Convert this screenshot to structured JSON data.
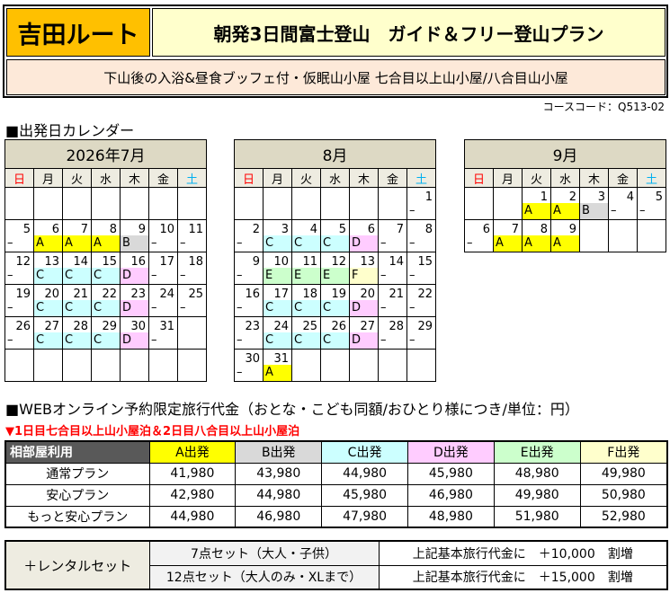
{
  "header": {
    "route": "吉田ルート",
    "title": "朝発3日間富士登山　ガイド＆フリー登山プラン",
    "subtitle": "下山後の入浴&昼食ブッフェ付・仮眠山小屋 七合目以上山小屋/八合目山小屋",
    "course_code": "コースコード：Q513-02"
  },
  "calendar": {
    "heading": "■出発日カレンダー",
    "weekdays": [
      "日",
      "月",
      "火",
      "水",
      "木",
      "金",
      "土"
    ],
    "weekday_colors": [
      "#FF0000",
      "#000000",
      "#000000",
      "#000000",
      "#000000",
      "#000000",
      "#00B0F0"
    ],
    "mark_colors": {
      "A": "#FFFF00",
      "B": "#D9D9D9",
      "C": "#CCFFFF",
      "D": "#FFCCFF",
      "E": "#CCFFCC",
      "F": "#FFFFCC"
    },
    "months": [
      {
        "title": "2026年7月",
        "weeks": [
          [
            null,
            null,
            null,
            null,
            null,
            null,
            null
          ],
          [
            [
              "5",
              "–"
            ],
            [
              "6",
              "A"
            ],
            [
              "7",
              "A"
            ],
            [
              "8",
              "A"
            ],
            [
              "9",
              "B"
            ],
            [
              "10",
              "–"
            ],
            [
              "11",
              "–"
            ]
          ],
          [
            [
              "12",
              "–"
            ],
            [
              "13",
              "C"
            ],
            [
              "14",
              "C"
            ],
            [
              "15",
              "C"
            ],
            [
              "16",
              "D"
            ],
            [
              "17",
              "–"
            ],
            [
              "18",
              "–"
            ]
          ],
          [
            [
              "19",
              "–"
            ],
            [
              "20",
              "C"
            ],
            [
              "21",
              "C"
            ],
            [
              "22",
              "C"
            ],
            [
              "23",
              "D"
            ],
            [
              "24",
              "–"
            ],
            [
              "25",
              "–"
            ]
          ],
          [
            [
              "26",
              "–"
            ],
            [
              "27",
              "C"
            ],
            [
              "28",
              "C"
            ],
            [
              "29",
              "C"
            ],
            [
              "30",
              "D"
            ],
            [
              "31",
              "–"
            ],
            null
          ],
          [
            null,
            null,
            null,
            null,
            null,
            null,
            null
          ]
        ]
      },
      {
        "title": "8月",
        "weeks": [
          [
            null,
            null,
            null,
            null,
            null,
            null,
            [
              "1",
              "–"
            ]
          ],
          [
            [
              "2",
              "–"
            ],
            [
              "3",
              "C"
            ],
            [
              "4",
              "C"
            ],
            [
              "5",
              "C"
            ],
            [
              "6",
              "D"
            ],
            [
              "7",
              "–"
            ],
            [
              "8",
              "–"
            ]
          ],
          [
            [
              "9",
              "–"
            ],
            [
              "10",
              "E"
            ],
            [
              "11",
              "E"
            ],
            [
              "12",
              "E"
            ],
            [
              "13",
              "F"
            ],
            [
              "14",
              "–"
            ],
            [
              "15",
              "–"
            ]
          ],
          [
            [
              "16",
              "–"
            ],
            [
              "17",
              "C"
            ],
            [
              "18",
              "C"
            ],
            [
              "19",
              "C"
            ],
            [
              "20",
              "D"
            ],
            [
              "21",
              "–"
            ],
            [
              "22",
              "–"
            ]
          ],
          [
            [
              "23",
              "–"
            ],
            [
              "24",
              "C"
            ],
            [
              "25",
              "C"
            ],
            [
              "26",
              "C"
            ],
            [
              "27",
              "D"
            ],
            [
              "28",
              "–"
            ],
            [
              "29",
              "–"
            ]
          ],
          [
            [
              "30",
              "–"
            ],
            [
              "31",
              "A"
            ],
            null,
            null,
            null,
            null,
            null
          ]
        ]
      },
      {
        "title": "9月",
        "weeks": [
          [
            null,
            null,
            [
              "1",
              "A"
            ],
            [
              "2",
              "A"
            ],
            [
              "3",
              "B"
            ],
            [
              "4",
              "–"
            ],
            [
              "5",
              "–"
            ]
          ],
          [
            [
              "6",
              "–"
            ],
            [
              "7",
              "A"
            ],
            [
              "8",
              "A"
            ],
            [
              "9",
              "A"
            ],
            null,
            null,
            null
          ]
        ]
      }
    ]
  },
  "prices": {
    "heading": "■WEBオンライン予約限定旅行代金（おとな・こども同額/おひとり様につき/単位：円）",
    "note": "▼1日目七合目以上山小屋泊＆2日目八合目以上山小屋泊",
    "corner": "相部屋利用",
    "columns": [
      {
        "label": "A出発",
        "color": "#FFFF00"
      },
      {
        "label": "B出発",
        "color": "#D9D9D9"
      },
      {
        "label": "C出発",
        "color": "#CCFFFF"
      },
      {
        "label": "D出発",
        "color": "#FFCCFF"
      },
      {
        "label": "E出発",
        "color": "#CCFFCC"
      },
      {
        "label": "F出発",
        "color": "#FFFFCC"
      }
    ],
    "rows": [
      {
        "plan": "通常プラン",
        "values": [
          "41,980",
          "43,980",
          "44,980",
          "45,980",
          "48,980",
          "49,980"
        ]
      },
      {
        "plan": "安心プラン",
        "values": [
          "42,980",
          "44,980",
          "45,980",
          "46,980",
          "49,980",
          "50,980"
        ]
      },
      {
        "plan": "もっと安心プラン",
        "values": [
          "44,980",
          "46,980",
          "47,980",
          "48,980",
          "51,980",
          "52,980"
        ]
      }
    ]
  },
  "rental": {
    "label": "＋レンタルセット",
    "items": [
      {
        "name": "7点セット（大人・子供）",
        "price": "上記基本旅行代金に　＋10,000　割増"
      },
      {
        "name": "12点セット（大人のみ・XLまで）",
        "price": "上記基本旅行代金に　＋15,000　割増"
      }
    ]
  }
}
